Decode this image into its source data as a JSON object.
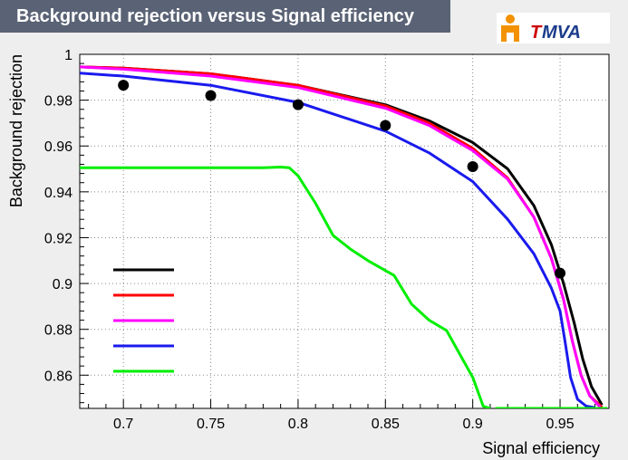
{
  "title": "Background rejection versus Signal efficiency",
  "logo": {
    "text": "MVA",
    "prefix": "T",
    "icon": "tmva-logo-icon",
    "orange": "#f39200",
    "red": "#cc0000",
    "blue": "#1b3c8c"
  },
  "colors": {
    "title_bg": "#5a6375",
    "canvas_bg": "#eeeeee",
    "plot_bg": "#ffffff",
    "grid": "#888888"
  },
  "chart_data": {
    "type": "line",
    "title": "Background rejection versus Signal efficiency",
    "xlabel": "Signal efficiency",
    "ylabel": "Background rejection",
    "xlim": [
      0.675,
      0.978
    ],
    "ylim": [
      0.8455,
      1.0
    ],
    "grid": true,
    "xticks": [
      0.7,
      0.75,
      0.8,
      0.85,
      0.9,
      0.95
    ],
    "yticks": [
      0.86,
      0.88,
      0.9,
      0.92,
      0.94,
      0.96,
      0.98,
      1
    ],
    "legend_placement": "bottom-left",
    "legend_labels_visible": false,
    "series": [
      {
        "color": "#000000",
        "points": [
          [
            0.675,
            0.9945
          ],
          [
            0.7,
            0.994
          ],
          [
            0.75,
            0.9915
          ],
          [
            0.8,
            0.9865
          ],
          [
            0.85,
            0.978
          ],
          [
            0.875,
            0.971
          ],
          [
            0.9,
            0.9615
          ],
          [
            0.92,
            0.95
          ],
          [
            0.935,
            0.934
          ],
          [
            0.945,
            0.917
          ],
          [
            0.952,
            0.9
          ],
          [
            0.958,
            0.883
          ],
          [
            0.963,
            0.867
          ],
          [
            0.968,
            0.855
          ],
          [
            0.974,
            0.847
          ]
        ]
      },
      {
        "color": "#ff0000",
        "points": [
          [
            0.675,
            0.9945
          ],
          [
            0.7,
            0.994
          ],
          [
            0.75,
            0.9915
          ],
          [
            0.8,
            0.9865
          ],
          [
            0.85,
            0.9775
          ],
          [
            0.875,
            0.97
          ],
          [
            0.9,
            0.959
          ],
          [
            0.92,
            0.946
          ],
          [
            0.935,
            0.929
          ],
          [
            0.945,
            0.911
          ],
          [
            0.952,
            0.893
          ],
          [
            0.957,
            0.875
          ],
          [
            0.962,
            0.86
          ],
          [
            0.967,
            0.851
          ],
          [
            0.974,
            0.846
          ]
        ]
      },
      {
        "color": "#ff00ff",
        "points": [
          [
            0.675,
            0.9945
          ],
          [
            0.7,
            0.9935
          ],
          [
            0.75,
            0.9905
          ],
          [
            0.8,
            0.9855
          ],
          [
            0.85,
            0.9765
          ],
          [
            0.875,
            0.969
          ],
          [
            0.9,
            0.958
          ],
          [
            0.92,
            0.9455
          ],
          [
            0.935,
            0.929
          ],
          [
            0.945,
            0.911
          ],
          [
            0.952,
            0.893
          ],
          [
            0.957,
            0.875
          ],
          [
            0.962,
            0.86
          ],
          [
            0.967,
            0.851
          ],
          [
            0.973,
            0.846
          ]
        ]
      },
      {
        "color": "#1a1aee",
        "points": [
          [
            0.675,
            0.9918
          ],
          [
            0.7,
            0.9905
          ],
          [
            0.75,
            0.9865
          ],
          [
            0.8,
            0.979
          ],
          [
            0.85,
            0.9665
          ],
          [
            0.875,
            0.957
          ],
          [
            0.9,
            0.9445
          ],
          [
            0.92,
            0.928
          ],
          [
            0.935,
            0.913
          ],
          [
            0.945,
            0.898
          ],
          [
            0.95,
            0.888
          ],
          [
            0.953,
            0.874
          ],
          [
            0.956,
            0.859
          ],
          [
            0.96,
            0.8495
          ],
          [
            0.965,
            0.8465
          ],
          [
            0.97,
            0.8458
          ]
        ]
      },
      {
        "color": "#00ee00",
        "points": [
          [
            0.675,
            0.9505
          ],
          [
            0.7,
            0.9505
          ],
          [
            0.75,
            0.9505
          ],
          [
            0.78,
            0.9505
          ],
          [
            0.79,
            0.9508
          ],
          [
            0.795,
            0.9505
          ],
          [
            0.8,
            0.947
          ],
          [
            0.81,
            0.935
          ],
          [
            0.82,
            0.921
          ],
          [
            0.83,
            0.915
          ],
          [
            0.84,
            0.91
          ],
          [
            0.855,
            0.9035
          ],
          [
            0.865,
            0.891
          ],
          [
            0.875,
            0.884
          ],
          [
            0.885,
            0.8795
          ],
          [
            0.9,
            0.859
          ],
          [
            0.906,
            0.8465
          ],
          [
            0.91,
            0.8455
          ]
        ]
      },
      {
        "color": "#00ee00",
        "points": [
          [
            0.913,
            0.8455
          ],
          [
            0.977,
            0.8455
          ]
        ]
      }
    ],
    "markers": [
      {
        "x": 0.7,
        "y": 0.9865
      },
      {
        "x": 0.75,
        "y": 0.982
      },
      {
        "x": 0.8,
        "y": 0.978
      },
      {
        "x": 0.85,
        "y": 0.969
      },
      {
        "x": 0.9,
        "y": 0.951
      },
      {
        "x": 0.95,
        "y": 0.9045
      }
    ]
  }
}
